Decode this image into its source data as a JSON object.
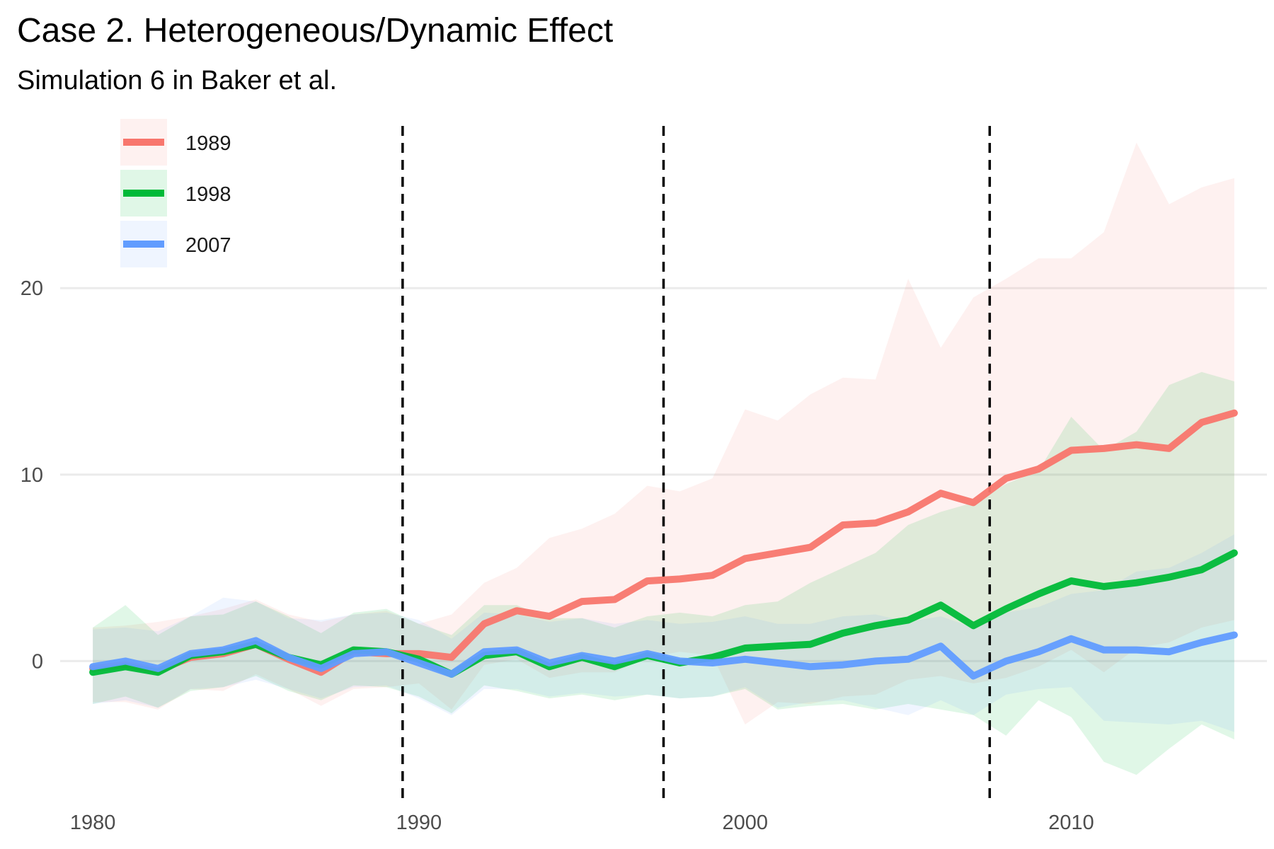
{
  "title": "Case 2. Heterogeneous/Dynamic Effect",
  "subtitle": "Simulation 6 in Baker et al.",
  "chart_data": {
    "type": "line",
    "title": "Case 2. Heterogeneous/Dynamic Effect",
    "subtitle": "Simulation 6 in Baker et al.",
    "xlabel": "",
    "ylabel": "",
    "xlim": [
      1979,
      2016
    ],
    "ylim": [
      -7.8,
      29
    ],
    "x_ticks": [
      1980,
      1990,
      2000,
      2010
    ],
    "y_ticks": [
      0,
      10,
      20
    ],
    "grid": "horizontal major",
    "legend": "top-left",
    "vertical_lines": [
      1989.5,
      1997.5,
      2007.5
    ],
    "x": [
      1980,
      1981,
      1982,
      1983,
      1984,
      1985,
      1986,
      1987,
      1988,
      1989,
      1990,
      1991,
      1992,
      1993,
      1994,
      1995,
      1996,
      1997,
      1998,
      1999,
      2000,
      2001,
      2002,
      2003,
      2004,
      2005,
      2006,
      2007,
      2008,
      2009,
      2010,
      2011,
      2012,
      2013,
      2014,
      2015
    ],
    "series": [
      {
        "name": "1989",
        "color": "#F8766D",
        "values": [
          -0.4,
          -0.2,
          -0.5,
          0.2,
          0.4,
          0.9,
          0.1,
          -0.6,
          0.5,
          0.4,
          0.4,
          0.2,
          2.0,
          2.7,
          2.4,
          3.2,
          3.3,
          4.3,
          4.4,
          4.6,
          5.5,
          5.8,
          6.1,
          7.3,
          7.4,
          8.0,
          9.0,
          8.5,
          9.8,
          10.3,
          11.3,
          11.4,
          11.6,
          11.4,
          12.8,
          13.3
        ],
        "upper": [
          1.8,
          1.9,
          2.1,
          2.4,
          2.8,
          3.3,
          2.5,
          2.1,
          2.5,
          2.7,
          2.0,
          2.5,
          4.2,
          5.0,
          6.6,
          7.1,
          7.9,
          9.4,
          9.1,
          9.8,
          13.5,
          12.9,
          14.3,
          15.2,
          15.1,
          20.5,
          16.8,
          19.5,
          20.5,
          21.6,
          21.6,
          23.0,
          27.8,
          24.5,
          25.4,
          25.9
        ],
        "lower": [
          -2.2,
          -2.2,
          -2.6,
          -1.5,
          -1.6,
          -0.7,
          -1.5,
          -2.4,
          -1.5,
          -1.4,
          -1.2,
          -2.6,
          -0.2,
          0.1,
          -0.9,
          -0.6,
          -0.6,
          0.2,
          0.5,
          0.3,
          -3.4,
          -2.2,
          -2.3,
          -1.9,
          -1.8,
          -1.0,
          -0.8,
          -1.2,
          -0.9,
          -0.3,
          0.6,
          -0.6,
          0.7,
          1.0,
          1.8,
          2.2
        ]
      },
      {
        "name": "1998",
        "color": "#00BA38",
        "values": [
          -0.6,
          -0.3,
          -0.6,
          0.3,
          0.5,
          0.9,
          0.2,
          -0.2,
          0.6,
          0.5,
          0.1,
          -0.7,
          0.3,
          0.5,
          -0.3,
          0.2,
          -0.3,
          0.3,
          -0.1,
          0.2,
          0.7,
          0.8,
          0.9,
          1.5,
          1.9,
          2.2,
          3.0,
          1.9,
          2.8,
          3.6,
          4.3,
          4.0,
          4.2,
          4.5,
          4.9,
          5.8
        ],
        "upper": [
          1.8,
          3.0,
          1.4,
          2.4,
          2.5,
          3.2,
          2.4,
          1.5,
          2.6,
          2.8,
          2.0,
          1.4,
          3.0,
          3.0,
          2.3,
          2.3,
          1.8,
          2.4,
          2.6,
          2.4,
          3.0,
          3.2,
          4.2,
          5.0,
          5.8,
          7.3,
          8.0,
          8.5,
          9.5,
          10.2,
          13.1,
          11.3,
          12.3,
          14.8,
          15.5,
          15.0
        ],
        "lower": [
          -2.3,
          -1.9,
          -2.5,
          -1.6,
          -1.4,
          -0.8,
          -1.6,
          -2.1,
          -1.3,
          -1.4,
          -1.9,
          -2.8,
          -1.3,
          -1.6,
          -2.0,
          -1.8,
          -2.1,
          -1.8,
          -2.0,
          -1.9,
          -1.5,
          -2.6,
          -2.4,
          -2.3,
          -2.6,
          -2.3,
          -2.6,
          -2.9,
          -4.0,
          -2.1,
          -3.0,
          -5.4,
          -6.1,
          -4.7,
          -3.4,
          -4.2
        ],
        "dashed_values_to": 1989
      },
      {
        "name": "2007",
        "color": "#619CFF",
        "values": [
          -0.3,
          0.0,
          -0.4,
          0.4,
          0.6,
          1.1,
          0.2,
          -0.4,
          0.4,
          0.5,
          -0.1,
          -0.7,
          0.5,
          0.6,
          -0.1,
          0.3,
          0.0,
          0.4,
          0.0,
          -0.1,
          0.1,
          -0.1,
          -0.3,
          -0.2,
          0.0,
          0.1,
          0.8,
          -0.8,
          0.0,
          0.5,
          1.2,
          0.6,
          0.6,
          0.5,
          1.0,
          1.4
        ],
        "upper": [
          1.7,
          1.8,
          1.6,
          2.4,
          3.4,
          3.2,
          2.3,
          2.2,
          2.5,
          2.6,
          2.2,
          1.2,
          2.6,
          2.5,
          2.1,
          2.3,
          2.0,
          2.2,
          2.0,
          2.1,
          2.4,
          2.0,
          2.0,
          2.4,
          2.5,
          2.1,
          2.4,
          1.8,
          2.6,
          2.9,
          3.6,
          3.8,
          4.8,
          5.0,
          5.8,
          6.8
        ],
        "lower": [
          -2.3,
          -2.1,
          -2.5,
          -1.5,
          -1.4,
          -1.0,
          -1.5,
          -2.0,
          -1.4,
          -1.3,
          -2.0,
          -2.9,
          -1.5,
          -1.5,
          -1.9,
          -1.7,
          -1.9,
          -1.8,
          -2.0,
          -1.9,
          -1.4,
          -2.5,
          -2.2,
          -2.1,
          -2.5,
          -2.9,
          -2.1,
          -2.9,
          -1.8,
          -1.5,
          -1.4,
          -3.2,
          -3.3,
          -3.4,
          -3.2,
          -3.8
        ]
      }
    ]
  }
}
